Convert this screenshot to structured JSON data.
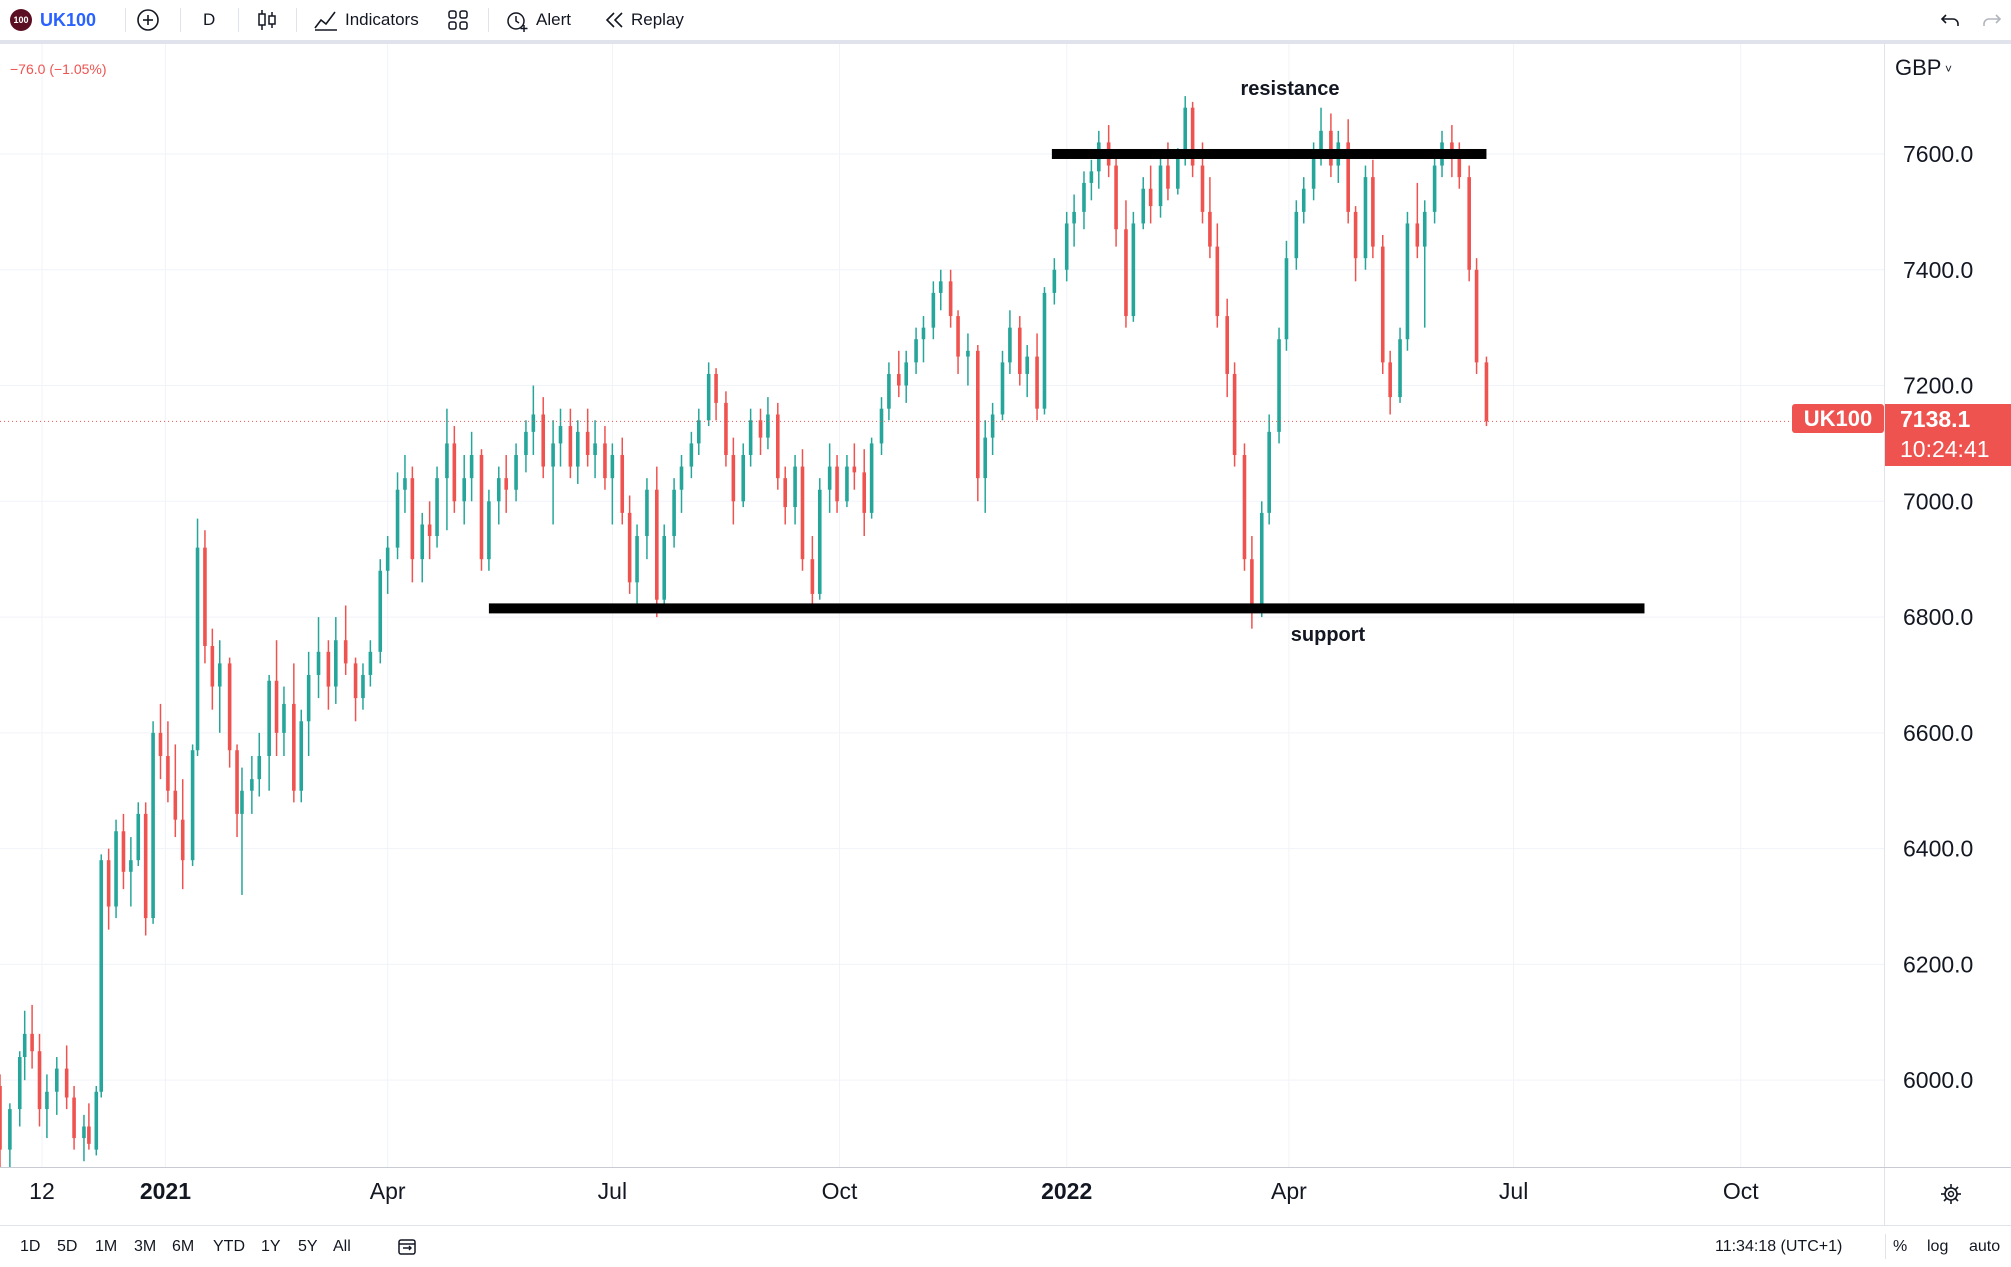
{
  "toolbar": {
    "logo_text": "100",
    "symbol": "UK100",
    "add_icon": "plus-circle-icon",
    "interval": "D",
    "chart_type_icon": "candlestick-icon",
    "indicators_label": "Indicators",
    "layout_icon": "grid-icon",
    "alert_label": "Alert",
    "replay_label": "Replay",
    "undo_icon": "undo-icon",
    "redo_icon": "redo-icon"
  },
  "change_text": "−76.0 (−1.05%)",
  "currency": "GBP",
  "price_badge": {
    "symbol": "UK100",
    "price": "7138.1",
    "countdown": "10:24:41"
  },
  "annotations": {
    "resistance": "resistance",
    "support": "support"
  },
  "bottom": {
    "ranges": [
      "1D",
      "5D",
      "1M",
      "3M",
      "6M",
      "YTD",
      "1Y",
      "5Y",
      "All"
    ],
    "date_range_icon": "calendar-range-icon",
    "time": "11:34:18 (UTC+1)",
    "percent": "%",
    "log": "log",
    "auto": "auto",
    "settings_icon": "gear-icon"
  },
  "colors": {
    "up": "#26a69a",
    "down": "#ef5350",
    "accent": "#2962ff",
    "badge": "#ef5350",
    "lines": "#000000"
  },
  "chart_data": {
    "type": "candlestick",
    "title": "UK100",
    "currency": "GBP",
    "ylim": [
      5850,
      7790
    ],
    "y_ticks": [
      6000,
      6200,
      6400,
      6600,
      6800,
      7000,
      7200,
      7400,
      7600
    ],
    "y_tick_labels": [
      "6000.0",
      "6200.0",
      "6400.0",
      "6600.0",
      "6800.0",
      "7000.0",
      "7200.0",
      "7400.0",
      "7600.0"
    ],
    "xlim": [
      "2020-10-26",
      "2022-11-28"
    ],
    "x_ticks": [
      {
        "date": "2020-11-12",
        "label": "12",
        "bold": false
      },
      {
        "date": "2021-01-01",
        "label": "2021",
        "bold": true
      },
      {
        "date": "2021-04-01",
        "label": "Apr",
        "bold": false
      },
      {
        "date": "2021-07-01",
        "label": "Jul",
        "bold": false
      },
      {
        "date": "2021-10-01",
        "label": "Oct",
        "bold": false
      },
      {
        "date": "2022-01-01",
        "label": "2022",
        "bold": true
      },
      {
        "date": "2022-04-01",
        "label": "Apr",
        "bold": false
      },
      {
        "date": "2022-07-01",
        "label": "Jul",
        "bold": false
      },
      {
        "date": "2022-10-01",
        "label": "Oct",
        "bold": false
      }
    ],
    "last_price": 7138.1,
    "levels": [
      {
        "name": "resistance",
        "value": 7600,
        "from": "2021-12-26",
        "to": "2022-06-20"
      },
      {
        "name": "support",
        "value": 6815,
        "from": "2021-05-12",
        "to": "2022-08-23"
      }
    ],
    "candles": [
      [
        "2020-10-26",
        5990,
        6010,
        5850,
        5880
      ],
      [
        "2020-10-30",
        5880,
        5960,
        5850,
        5950
      ],
      [
        "2020-11-03",
        5950,
        6050,
        5920,
        6040
      ],
      [
        "2020-11-05",
        6040,
        6120,
        6000,
        6080
      ],
      [
        "2020-11-08",
        6080,
        6130,
        6020,
        6050
      ],
      [
        "2020-11-11",
        6050,
        6080,
        5920,
        5950
      ],
      [
        "2020-11-14",
        5950,
        6010,
        5900,
        5980
      ],
      [
        "2020-11-18",
        5980,
        6040,
        5940,
        6020
      ],
      [
        "2020-11-22",
        6020,
        6060,
        5950,
        5970
      ],
      [
        "2020-11-25",
        5970,
        5990,
        5880,
        5900
      ],
      [
        "2020-11-29",
        5900,
        5940,
        5860,
        5920
      ],
      [
        "2020-12-01",
        5920,
        5960,
        5880,
        5890
      ],
      [
        "2020-12-04",
        5880,
        5990,
        5870,
        5980
      ],
      [
        "2020-12-06",
        5980,
        6390,
        5970,
        6380
      ],
      [
        "2020-12-09",
        6380,
        6400,
        6260,
        6300
      ],
      [
        "2020-12-12",
        6300,
        6450,
        6280,
        6430
      ],
      [
        "2020-12-15",
        6430,
        6460,
        6330,
        6360
      ],
      [
        "2020-12-18",
        6360,
        6420,
        6300,
        6380
      ],
      [
        "2020-12-21",
        6380,
        6480,
        6370,
        6460
      ],
      [
        "2020-12-24",
        6460,
        6480,
        6250,
        6280
      ],
      [
        "2020-12-27",
        6280,
        6620,
        6270,
        6600
      ],
      [
        "2020-12-30",
        6600,
        6650,
        6520,
        6560
      ],
      [
        "2021-01-02",
        6560,
        6620,
        6480,
        6500
      ],
      [
        "2021-01-05",
        6500,
        6580,
        6420,
        6450
      ],
      [
        "2021-01-08",
        6450,
        6520,
        6330,
        6380
      ],
      [
        "2021-01-12",
        6380,
        6580,
        6370,
        6570
      ],
      [
        "2021-01-14",
        6570,
        6970,
        6560,
        6920
      ],
      [
        "2021-01-17",
        6920,
        6950,
        6720,
        6750
      ],
      [
        "2021-01-20",
        6750,
        6780,
        6640,
        6680
      ],
      [
        "2021-01-23",
        6680,
        6760,
        6600,
        6720
      ],
      [
        "2021-01-27",
        6720,
        6730,
        6540,
        6570
      ],
      [
        "2021-01-30",
        6570,
        6580,
        6420,
        6460
      ],
      [
        "2021-02-01",
        6460,
        6540,
        6320,
        6500
      ],
      [
        "2021-02-05",
        6500,
        6560,
        6460,
        6520
      ],
      [
        "2021-02-08",
        6520,
        6600,
        6490,
        6560
      ],
      [
        "2021-02-12",
        6560,
        6700,
        6500,
        6690
      ],
      [
        "2021-02-15",
        6690,
        6760,
        6560,
        6600
      ],
      [
        "2021-02-18",
        6600,
        6680,
        6560,
        6650
      ],
      [
        "2021-02-22",
        6650,
        6720,
        6480,
        6500
      ],
      [
        "2021-02-25",
        6500,
        6640,
        6480,
        6620
      ],
      [
        "2021-02-28",
        6620,
        6740,
        6560,
        6700
      ],
      [
        "2021-03-04",
        6700,
        6800,
        6660,
        6740
      ],
      [
        "2021-03-08",
        6740,
        6760,
        6640,
        6680
      ],
      [
        "2021-03-11",
        6680,
        6800,
        6650,
        6760
      ],
      [
        "2021-03-15",
        6760,
        6820,
        6700,
        6720
      ],
      [
        "2021-03-19",
        6720,
        6730,
        6620,
        6660
      ],
      [
        "2021-03-22",
        6660,
        6720,
        6640,
        6700
      ],
      [
        "2021-03-25",
        6700,
        6760,
        6680,
        6740
      ],
      [
        "2021-03-29",
        6740,
        6900,
        6720,
        6880
      ],
      [
        "2021-04-01",
        6880,
        6940,
        6840,
        6920
      ],
      [
        "2021-04-05",
        6920,
        7050,
        6900,
        7020
      ],
      [
        "2021-04-08",
        7020,
        7080,
        6980,
        7040
      ],
      [
        "2021-04-11",
        7040,
        7060,
        6860,
        6900
      ],
      [
        "2021-04-15",
        6900,
        6980,
        6860,
        6960
      ],
      [
        "2021-04-18",
        6960,
        7000,
        6900,
        6940
      ],
      [
        "2021-04-21",
        6940,
        7060,
        6920,
        7040
      ],
      [
        "2021-04-25",
        7040,
        7160,
        6950,
        7100
      ],
      [
        "2021-04-28",
        7100,
        7130,
        6980,
        7000
      ],
      [
        "2021-05-02",
        7000,
        7080,
        6960,
        7040
      ],
      [
        "2021-05-05",
        7040,
        7120,
        7000,
        7080
      ],
      [
        "2021-05-09",
        7080,
        7090,
        6880,
        6900
      ],
      [
        "2021-05-12",
        6900,
        7020,
        6880,
        7000
      ],
      [
        "2021-05-16",
        7000,
        7060,
        6960,
        7040
      ],
      [
        "2021-05-19",
        7040,
        7080,
        6980,
        7020
      ],
      [
        "2021-05-23",
        7020,
        7100,
        7000,
        7080
      ],
      [
        "2021-05-27",
        7080,
        7140,
        7050,
        7120
      ],
      [
        "2021-05-30",
        7120,
        7200,
        7080,
        7150
      ],
      [
        "2021-06-03",
        7150,
        7180,
        7040,
        7060
      ],
      [
        "2021-06-07",
        7060,
        7140,
        6960,
        7100
      ],
      [
        "2021-06-10",
        7100,
        7160,
        7060,
        7130
      ],
      [
        "2021-06-14",
        7130,
        7160,
        7040,
        7060
      ],
      [
        "2021-06-17",
        7060,
        7140,
        7030,
        7120
      ],
      [
        "2021-06-21",
        7120,
        7160,
        7060,
        7080
      ],
      [
        "2021-06-24",
        7080,
        7140,
        7040,
        7100
      ],
      [
        "2021-06-28",
        7100,
        7130,
        7020,
        7040
      ],
      [
        "2021-07-01",
        7040,
        7100,
        6960,
        7080
      ],
      [
        "2021-07-05",
        7080,
        7110,
        6960,
        6980
      ],
      [
        "2021-07-08",
        6980,
        7010,
        6840,
        6860
      ],
      [
        "2021-07-11",
        6860,
        6960,
        6820,
        6940
      ],
      [
        "2021-07-15",
        6940,
        7040,
        6900,
        7020
      ],
      [
        "2021-07-19",
        7020,
        7060,
        6800,
        6830
      ],
      [
        "2021-07-22",
        6830,
        6960,
        6820,
        6940
      ],
      [
        "2021-07-26",
        6940,
        7040,
        6920,
        7020
      ],
      [
        "2021-07-29",
        7020,
        7080,
        6980,
        7060
      ],
      [
        "2021-08-02",
        7060,
        7120,
        7040,
        7100
      ],
      [
        "2021-08-05",
        7100,
        7160,
        7080,
        7140
      ],
      [
        "2021-08-09",
        7140,
        7240,
        7130,
        7220
      ],
      [
        "2021-08-12",
        7220,
        7230,
        7140,
        7170
      ],
      [
        "2021-08-16",
        7170,
        7190,
        7060,
        7080
      ],
      [
        "2021-08-19",
        7080,
        7110,
        6960,
        7000
      ],
      [
        "2021-08-23",
        7000,
        7100,
        6990,
        7080
      ],
      [
        "2021-08-26",
        7080,
        7160,
        7060,
        7140
      ],
      [
        "2021-08-30",
        7140,
        7160,
        7080,
        7110
      ],
      [
        "2021-09-02",
        7110,
        7180,
        7090,
        7150
      ],
      [
        "2021-09-06",
        7150,
        7170,
        7020,
        7040
      ],
      [
        "2021-09-09",
        7040,
        7060,
        6960,
        6990
      ],
      [
        "2021-09-13",
        6990,
        7080,
        6960,
        7060
      ],
      [
        "2021-09-16",
        7060,
        7090,
        6880,
        6900
      ],
      [
        "2021-09-20",
        6900,
        6940,
        6820,
        6840
      ],
      [
        "2021-09-23",
        6840,
        7040,
        6830,
        7020
      ],
      [
        "2021-09-27",
        7020,
        7100,
        6980,
        7060
      ],
      [
        "2021-09-30",
        7060,
        7080,
        6980,
        7000
      ],
      [
        "2021-10-04",
        7000,
        7080,
        6990,
        7060
      ],
      [
        "2021-10-07",
        7060,
        7100,
        7020,
        7050
      ],
      [
        "2021-10-11",
        7050,
        7090,
        6940,
        6980
      ],
      [
        "2021-10-14",
        6980,
        7110,
        6970,
        7100
      ],
      [
        "2021-10-18",
        7100,
        7180,
        7080,
        7160
      ],
      [
        "2021-10-21",
        7160,
        7240,
        7140,
        7220
      ],
      [
        "2021-10-25",
        7220,
        7260,
        7180,
        7200
      ],
      [
        "2021-10-28",
        7200,
        7260,
        7170,
        7240
      ],
      [
        "2021-11-01",
        7240,
        7300,
        7220,
        7280
      ],
      [
        "2021-11-04",
        7280,
        7320,
        7240,
        7300
      ],
      [
        "2021-11-08",
        7300,
        7380,
        7280,
        7360
      ],
      [
        "2021-11-11",
        7360,
        7400,
        7330,
        7380
      ],
      [
        "2021-11-15",
        7380,
        7400,
        7300,
        7320
      ],
      [
        "2021-11-18",
        7320,
        7330,
        7220,
        7250
      ],
      [
        "2021-11-22",
        7250,
        7290,
        7200,
        7260
      ],
      [
        "2021-11-26",
        7260,
        7270,
        7000,
        7040
      ],
      [
        "2021-11-29",
        7040,
        7140,
        6980,
        7110
      ],
      [
        "2021-12-02",
        7110,
        7170,
        7080,
        7150
      ],
      [
        "2021-12-06",
        7150,
        7260,
        7140,
        7240
      ],
      [
        "2021-12-09",
        7240,
        7330,
        7220,
        7300
      ],
      [
        "2021-12-13",
        7300,
        7320,
        7200,
        7220
      ],
      [
        "2021-12-16",
        7220,
        7270,
        7180,
        7250
      ],
      [
        "2021-12-20",
        7250,
        7290,
        7140,
        7160
      ],
      [
        "2021-12-23",
        7160,
        7370,
        7150,
        7360
      ],
      [
        "2021-12-27",
        7360,
        7420,
        7340,
        7400
      ],
      [
        "2022-01-01",
        7400,
        7500,
        7380,
        7480
      ],
      [
        "2022-01-04",
        7480,
        7530,
        7440,
        7500
      ],
      [
        "2022-01-08",
        7500,
        7570,
        7470,
        7550
      ],
      [
        "2022-01-11",
        7550,
        7590,
        7520,
        7570
      ],
      [
        "2022-01-14",
        7570,
        7640,
        7540,
        7620
      ],
      [
        "2022-01-18",
        7620,
        7650,
        7560,
        7580
      ],
      [
        "2022-01-21",
        7580,
        7600,
        7440,
        7470
      ],
      [
        "2022-01-25",
        7470,
        7520,
        7300,
        7320
      ],
      [
        "2022-01-28",
        7320,
        7500,
        7310,
        7480
      ],
      [
        "2022-02-01",
        7480,
        7560,
        7470,
        7540
      ],
      [
        "2022-02-04",
        7540,
        7580,
        7480,
        7510
      ],
      [
        "2022-02-08",
        7510,
        7600,
        7490,
        7580
      ],
      [
        "2022-02-11",
        7580,
        7620,
        7520,
        7540
      ],
      [
        "2022-02-15",
        7540,
        7610,
        7530,
        7600
      ],
      [
        "2022-02-18",
        7600,
        7700,
        7580,
        7680
      ],
      [
        "2022-02-21",
        7680,
        7690,
        7560,
        7580
      ],
      [
        "2022-02-25",
        7580,
        7620,
        7480,
        7500
      ],
      [
        "2022-02-28",
        7500,
        7560,
        7420,
        7440
      ],
      [
        "2022-03-03",
        7440,
        7480,
        7300,
        7320
      ],
      [
        "2022-03-07",
        7320,
        7350,
        7180,
        7220
      ],
      [
        "2022-03-10",
        7220,
        7240,
        7060,
        7080
      ],
      [
        "2022-03-14",
        7080,
        7100,
        6880,
        6900
      ],
      [
        "2022-03-17",
        6900,
        6940,
        6780,
        6820
      ],
      [
        "2022-03-21",
        6820,
        7000,
        6800,
        6980
      ],
      [
        "2022-03-24",
        6980,
        7150,
        6960,
        7120
      ],
      [
        "2022-03-28",
        7120,
        7300,
        7100,
        7280
      ],
      [
        "2022-03-31",
        7280,
        7450,
        7260,
        7420
      ],
      [
        "2022-04-04",
        7420,
        7520,
        7400,
        7500
      ],
      [
        "2022-04-07",
        7500,
        7560,
        7480,
        7540
      ],
      [
        "2022-04-11",
        7540,
        7620,
        7520,
        7600
      ],
      [
        "2022-04-14",
        7600,
        7680,
        7580,
        7640
      ],
      [
        "2022-04-18",
        7640,
        7670,
        7560,
        7580
      ],
      [
        "2022-04-21",
        7580,
        7640,
        7550,
        7620
      ],
      [
        "2022-04-25",
        7620,
        7660,
        7480,
        7500
      ],
      [
        "2022-04-28",
        7500,
        7510,
        7380,
        7420
      ],
      [
        "2022-05-02",
        7420,
        7580,
        7400,
        7560
      ],
      [
        "2022-05-05",
        7560,
        7590,
        7420,
        7440
      ],
      [
        "2022-05-09",
        7440,
        7460,
        7220,
        7240
      ],
      [
        "2022-05-12",
        7240,
        7260,
        7150,
        7180
      ],
      [
        "2022-05-16",
        7180,
        7300,
        7170,
        7280
      ],
      [
        "2022-05-19",
        7280,
        7500,
        7260,
        7480
      ],
      [
        "2022-05-23",
        7480,
        7550,
        7420,
        7440
      ],
      [
        "2022-05-26",
        7440,
        7520,
        7300,
        7500
      ],
      [
        "2022-05-30",
        7500,
        7600,
        7480,
        7580
      ],
      [
        "2022-06-02",
        7580,
        7640,
        7560,
        7620
      ],
      [
        "2022-06-06",
        7620,
        7650,
        7560,
        7600
      ],
      [
        "2022-06-09",
        7600,
        7620,
        7540,
        7560
      ],
      [
        "2022-06-13",
        7560,
        7580,
        7380,
        7400
      ],
      [
        "2022-06-16",
        7400,
        7420,
        7220,
        7240
      ],
      [
        "2022-06-20",
        7240,
        7250,
        7130,
        7138.1
      ]
    ]
  }
}
